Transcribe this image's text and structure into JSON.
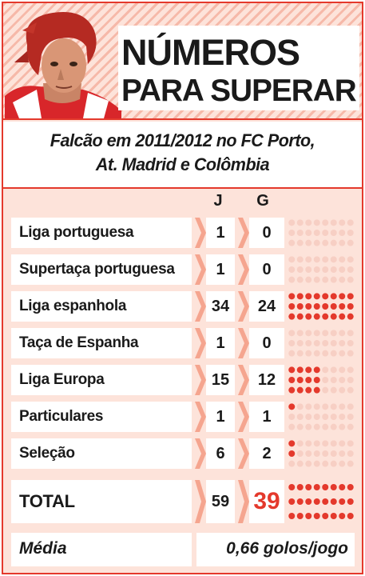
{
  "header": {
    "title_line1": "NÚMEROS",
    "title_line2": "PARA SUPERAR"
  },
  "subtitle": {
    "line1": "Falcão em 2011/2012 no FC Porto,",
    "line2": "At. Madrid e Colômbia"
  },
  "columns": {
    "games": "J",
    "goals": "G"
  },
  "colors": {
    "accent": "#e4392c",
    "panel": "#fde3da",
    "dot_off": "#f7cfc4"
  },
  "chart_data": {
    "type": "table",
    "columns": [
      "J",
      "G"
    ],
    "rows": [
      {
        "label": "Liga portuguesa",
        "games": 1,
        "goals": 0
      },
      {
        "label": "Supertaça portuguesa",
        "games": 1,
        "goals": 0
      },
      {
        "label": "Liga espanhola",
        "games": 34,
        "goals": 24
      },
      {
        "label": "Taça de Espanha",
        "games": 1,
        "goals": 0
      },
      {
        "label": "Liga Europa",
        "games": 15,
        "goals": 12
      },
      {
        "label": "Particulares",
        "games": 1,
        "goals": 1
      },
      {
        "label": "Seleção",
        "games": 6,
        "goals": 2
      }
    ],
    "total": {
      "label": "TOTAL",
      "games": 59,
      "goals": 39
    },
    "dot_grid": {
      "rows": 3,
      "cols": 8
    }
  },
  "average": {
    "label": "Média",
    "value": "0,66 golos/jogo"
  }
}
